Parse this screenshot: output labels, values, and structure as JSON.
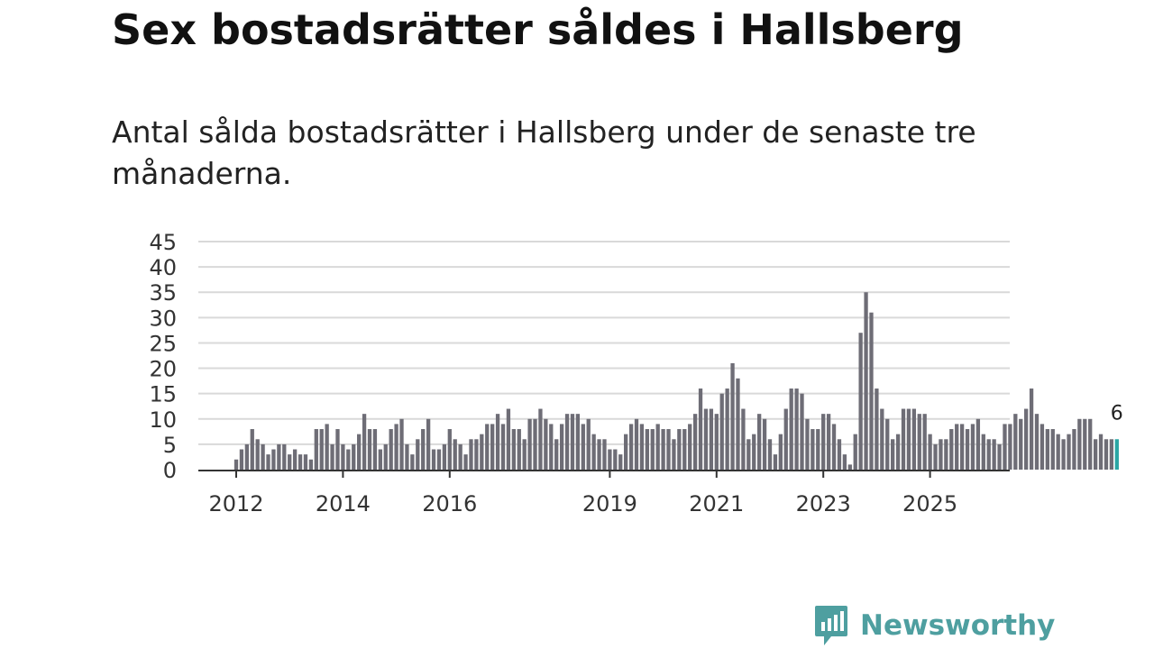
{
  "title": "Sex bostadsrätter såldes i Hallsberg",
  "subtitle": "Antal sålda bostadsrätter i Hallsberg under de senaste tre månaderna.",
  "brand": {
    "name": "Newsworthy",
    "color": "#4e9fa0"
  },
  "colors": {
    "bar": "#6e6d76",
    "highlight": "#2aa6a4",
    "grid": "#d9d9d9",
    "axis": "#333333"
  },
  "chart_data": {
    "type": "bar",
    "title": "Sex bostadsrätter såldes i Hallsberg",
    "xlabel": "",
    "ylabel": "",
    "ylim": [
      0,
      45
    ],
    "yticks": [
      0,
      5,
      10,
      15,
      20,
      25,
      30,
      35,
      40,
      45
    ],
    "xticks": [
      {
        "label": "2012",
        "index": 0
      },
      {
        "label": "2014",
        "index": 20
      },
      {
        "label": "2016",
        "index": 40
      },
      {
        "label": "2019",
        "index": 70
      },
      {
        "label": "2021",
        "index": 90
      },
      {
        "label": "2023",
        "index": 110
      },
      {
        "label": "2025",
        "index": 130
      }
    ],
    "values": [
      2,
      4,
      5,
      8,
      6,
      5,
      3,
      4,
      5,
      5,
      3,
      4,
      3,
      3,
      2,
      8,
      8,
      9,
      5,
      8,
      5,
      4,
      5,
      7,
      11,
      8,
      8,
      4,
      5,
      8,
      9,
      10,
      5,
      3,
      6,
      8,
      10,
      4,
      4,
      5,
      8,
      6,
      5,
      3,
      6,
      6,
      7,
      9,
      9,
      11,
      9,
      12,
      8,
      8,
      6,
      10,
      10,
      12,
      10,
      9,
      6,
      9,
      11,
      11,
      11,
      9,
      10,
      7,
      6,
      6,
      4,
      4,
      3,
      7,
      9,
      10,
      9,
      8,
      8,
      9,
      8,
      8,
      6,
      8,
      8,
      9,
      11,
      16,
      12,
      12,
      11,
      15,
      16,
      21,
      18,
      12,
      6,
      7,
      11,
      10,
      6,
      3,
      7,
      12,
      16,
      16,
      15,
      10,
      8,
      8,
      11,
      11,
      9,
      6,
      3,
      1,
      7,
      27,
      35,
      31,
      16,
      12,
      10,
      6,
      7,
      12,
      12,
      12,
      11,
      11,
      7,
      5,
      6,
      6,
      8,
      9,
      9,
      8,
      9,
      10,
      7,
      6,
      6,
      5,
      9,
      9,
      11,
      10,
      12,
      16,
      11,
      9,
      8,
      8,
      7,
      6,
      7,
      8,
      10,
      10,
      10,
      6,
      7,
      6,
      6,
      6
    ],
    "highlight_last": true,
    "annotation": {
      "label": "6",
      "index": "last"
    }
  }
}
